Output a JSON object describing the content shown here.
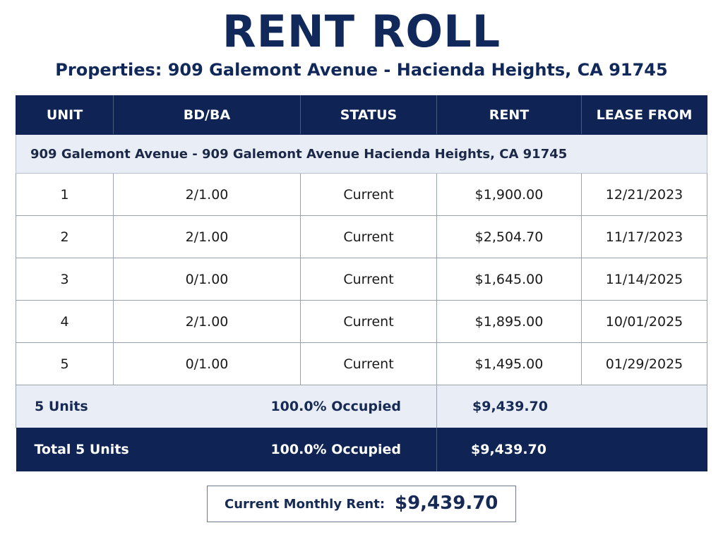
{
  "document": {
    "title": "RENT ROLL",
    "subtitle": "Properties: 909 Galemont Avenue - Hacienda Heights, CA 91745"
  },
  "table": {
    "headers": [
      "UNIT",
      "BD/BA",
      "STATUS",
      "RENT",
      "LEASE FROM"
    ],
    "group_label": "909 Galemont Avenue - 909 Galemont Avenue Hacienda Heights, CA 91745",
    "rows": [
      {
        "unit": "1",
        "bdba": "2/1.00",
        "status": "Current",
        "rent": "$1,900.00",
        "lease_from": "12/21/2023"
      },
      {
        "unit": "2",
        "bdba": "2/1.00",
        "status": "Current",
        "rent": "$2,504.70",
        "lease_from": "11/17/2023"
      },
      {
        "unit": "3",
        "bdba": "0/1.00",
        "status": "Current",
        "rent": "$1,645.00",
        "lease_from": "11/14/2025"
      },
      {
        "unit": "4",
        "bdba": "2/1.00",
        "status": "Current",
        "rent": "$1,895.00",
        "lease_from": "10/01/2025"
      },
      {
        "unit": "5",
        "bdba": "0/1.00",
        "status": "Current",
        "rent": "$1,495.00",
        "lease_from": "01/29/2025"
      }
    ],
    "subtotal": {
      "label": "5 Units",
      "occupancy": "100.0% Occupied",
      "rent": "$9,439.70"
    },
    "total": {
      "label": "Total 5 Units",
      "occupancy": "100.0% Occupied",
      "rent": "$9,439.70"
    }
  },
  "summary": {
    "label": "Current Monthly Rent:",
    "value": "$9,439.70"
  }
}
